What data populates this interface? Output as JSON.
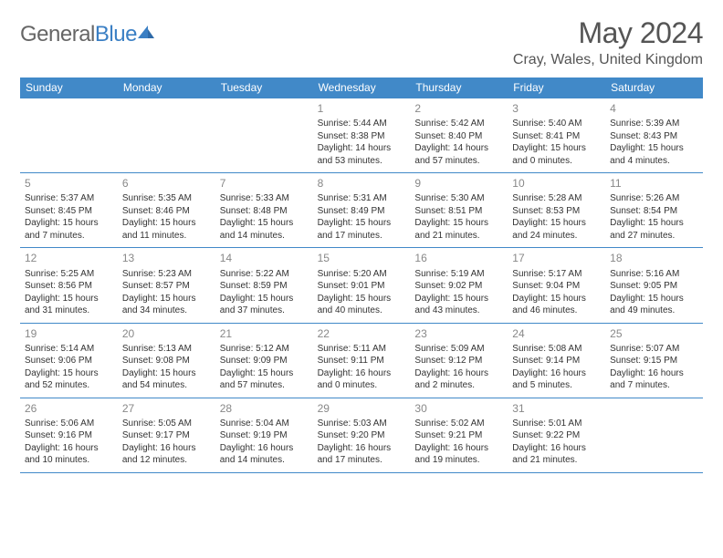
{
  "logo": {
    "text_left": "General",
    "text_right": "Blue"
  },
  "title": "May 2024",
  "location": "Cray, Wales, United Kingdom",
  "colors": {
    "header_bg": "#4189c8",
    "header_text": "#ffffff",
    "day_num": "#888888",
    "body_text": "#333333",
    "rule": "#4189c8"
  },
  "day_headers": [
    "Sunday",
    "Monday",
    "Tuesday",
    "Wednesday",
    "Thursday",
    "Friday",
    "Saturday"
  ],
  "weeks": [
    [
      null,
      null,
      null,
      {
        "n": "1",
        "sr": "5:44 AM",
        "ss": "8:38 PM",
        "dl1": "Daylight: 14 hours",
        "dl2": "and 53 minutes."
      },
      {
        "n": "2",
        "sr": "5:42 AM",
        "ss": "8:40 PM",
        "dl1": "Daylight: 14 hours",
        "dl2": "and 57 minutes."
      },
      {
        "n": "3",
        "sr": "5:40 AM",
        "ss": "8:41 PM",
        "dl1": "Daylight: 15 hours",
        "dl2": "and 0 minutes."
      },
      {
        "n": "4",
        "sr": "5:39 AM",
        "ss": "8:43 PM",
        "dl1": "Daylight: 15 hours",
        "dl2": "and 4 minutes."
      }
    ],
    [
      {
        "n": "5",
        "sr": "5:37 AM",
        "ss": "8:45 PM",
        "dl1": "Daylight: 15 hours",
        "dl2": "and 7 minutes."
      },
      {
        "n": "6",
        "sr": "5:35 AM",
        "ss": "8:46 PM",
        "dl1": "Daylight: 15 hours",
        "dl2": "and 11 minutes."
      },
      {
        "n": "7",
        "sr": "5:33 AM",
        "ss": "8:48 PM",
        "dl1": "Daylight: 15 hours",
        "dl2": "and 14 minutes."
      },
      {
        "n": "8",
        "sr": "5:31 AM",
        "ss": "8:49 PM",
        "dl1": "Daylight: 15 hours",
        "dl2": "and 17 minutes."
      },
      {
        "n": "9",
        "sr": "5:30 AM",
        "ss": "8:51 PM",
        "dl1": "Daylight: 15 hours",
        "dl2": "and 21 minutes."
      },
      {
        "n": "10",
        "sr": "5:28 AM",
        "ss": "8:53 PM",
        "dl1": "Daylight: 15 hours",
        "dl2": "and 24 minutes."
      },
      {
        "n": "11",
        "sr": "5:26 AM",
        "ss": "8:54 PM",
        "dl1": "Daylight: 15 hours",
        "dl2": "and 27 minutes."
      }
    ],
    [
      {
        "n": "12",
        "sr": "5:25 AM",
        "ss": "8:56 PM",
        "dl1": "Daylight: 15 hours",
        "dl2": "and 31 minutes."
      },
      {
        "n": "13",
        "sr": "5:23 AM",
        "ss": "8:57 PM",
        "dl1": "Daylight: 15 hours",
        "dl2": "and 34 minutes."
      },
      {
        "n": "14",
        "sr": "5:22 AM",
        "ss": "8:59 PM",
        "dl1": "Daylight: 15 hours",
        "dl2": "and 37 minutes."
      },
      {
        "n": "15",
        "sr": "5:20 AM",
        "ss": "9:01 PM",
        "dl1": "Daylight: 15 hours",
        "dl2": "and 40 minutes."
      },
      {
        "n": "16",
        "sr": "5:19 AM",
        "ss": "9:02 PM",
        "dl1": "Daylight: 15 hours",
        "dl2": "and 43 minutes."
      },
      {
        "n": "17",
        "sr": "5:17 AM",
        "ss": "9:04 PM",
        "dl1": "Daylight: 15 hours",
        "dl2": "and 46 minutes."
      },
      {
        "n": "18",
        "sr": "5:16 AM",
        "ss": "9:05 PM",
        "dl1": "Daylight: 15 hours",
        "dl2": "and 49 minutes."
      }
    ],
    [
      {
        "n": "19",
        "sr": "5:14 AM",
        "ss": "9:06 PM",
        "dl1": "Daylight: 15 hours",
        "dl2": "and 52 minutes."
      },
      {
        "n": "20",
        "sr": "5:13 AM",
        "ss": "9:08 PM",
        "dl1": "Daylight: 15 hours",
        "dl2": "and 54 minutes."
      },
      {
        "n": "21",
        "sr": "5:12 AM",
        "ss": "9:09 PM",
        "dl1": "Daylight: 15 hours",
        "dl2": "and 57 minutes."
      },
      {
        "n": "22",
        "sr": "5:11 AM",
        "ss": "9:11 PM",
        "dl1": "Daylight: 16 hours",
        "dl2": "and 0 minutes."
      },
      {
        "n": "23",
        "sr": "5:09 AM",
        "ss": "9:12 PM",
        "dl1": "Daylight: 16 hours",
        "dl2": "and 2 minutes."
      },
      {
        "n": "24",
        "sr": "5:08 AM",
        "ss": "9:14 PM",
        "dl1": "Daylight: 16 hours",
        "dl2": "and 5 minutes."
      },
      {
        "n": "25",
        "sr": "5:07 AM",
        "ss": "9:15 PM",
        "dl1": "Daylight: 16 hours",
        "dl2": "and 7 minutes."
      }
    ],
    [
      {
        "n": "26",
        "sr": "5:06 AM",
        "ss": "9:16 PM",
        "dl1": "Daylight: 16 hours",
        "dl2": "and 10 minutes."
      },
      {
        "n": "27",
        "sr": "5:05 AM",
        "ss": "9:17 PM",
        "dl1": "Daylight: 16 hours",
        "dl2": "and 12 minutes."
      },
      {
        "n": "28",
        "sr": "5:04 AM",
        "ss": "9:19 PM",
        "dl1": "Daylight: 16 hours",
        "dl2": "and 14 minutes."
      },
      {
        "n": "29",
        "sr": "5:03 AM",
        "ss": "9:20 PM",
        "dl1": "Daylight: 16 hours",
        "dl2": "and 17 minutes."
      },
      {
        "n": "30",
        "sr": "5:02 AM",
        "ss": "9:21 PM",
        "dl1": "Daylight: 16 hours",
        "dl2": "and 19 minutes."
      },
      {
        "n": "31",
        "sr": "5:01 AM",
        "ss": "9:22 PM",
        "dl1": "Daylight: 16 hours",
        "dl2": "and 21 minutes."
      },
      null
    ]
  ],
  "labels": {
    "sunrise": "Sunrise: ",
    "sunset": "Sunset: "
  }
}
